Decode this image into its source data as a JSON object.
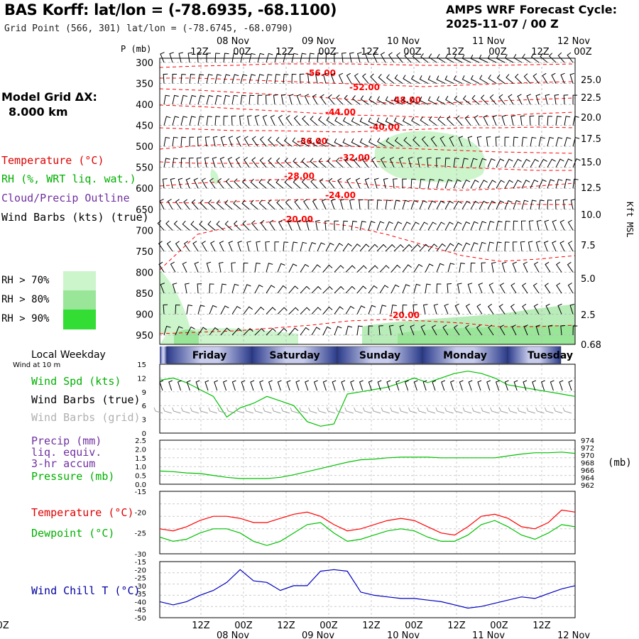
{
  "header": {
    "title": "BAS Korff:  lat/lon = (-78.6935, -68.1100)",
    "subtitle": "Grid Point (566, 301) lat/lon = (-78.6745, -68.0790)",
    "cycle_line1": "AMPS WRF Forecast Cycle:",
    "cycle_line2": "2025-11-07 / 00  Z"
  },
  "left_labels": {
    "model_grid": "Model Grid ΔX:",
    "model_grid_value": "8.000 km",
    "temperature": "Temperature (°C)",
    "rh": "RH (%, WRT liq. wat.)",
    "cloud": "Cloud/Precip Outline",
    "barbs": "Wind Barbs (kts) (true)",
    "rh70": "RH > 70%",
    "rh80": "RH > 80%",
    "rh90": "RH > 90%",
    "weekday": "Local Weekday",
    "wind10": "Wind at 10 m",
    "wind_spd": "Wind Spd (kts)",
    "wind_barbs_true": "Wind Barbs (true)",
    "wind_barbs_grid": "Wind Barbs (grid)",
    "precip1": "Precip (mm)",
    "precip2": "liq. equiv.",
    "precip3": "3-hr accum",
    "pressure": "Pressure (mb)",
    "temp2": "Temperature (°C)",
    "dewpoint": "Dewpoint (°C)",
    "windchill": "Wind Chill T (°C)",
    "p_unit": "P (mb)",
    "kft": "Kft MSL",
    "mb_unit": "(mb)"
  },
  "colors": {
    "temp": "#ff0000",
    "rh": "#00c000",
    "cloud": "#7030a0",
    "barb": "#000000",
    "grid_barb": "#a0a0a0",
    "windchill": "#0000c0",
    "rh70": "#ccf5cc",
    "rh80": "#99e699",
    "rh90": "#33dd33"
  },
  "chart_data": [
    {
      "type": "line",
      "title": "Cross-section: temperature contours and wind barbs",
      "x_top_ticks": [
        "12Z",
        "00Z",
        "12Z",
        "00Z",
        "12Z",
        "00Z",
        "12Z",
        "00Z",
        "12Z",
        "00Z"
      ],
      "x_top_dates": [
        "08 Nov",
        "09 Nov",
        "10 Nov",
        "11 Nov",
        "12 Nov"
      ],
      "pressure_levels": [
        300,
        350,
        400,
        450,
        500,
        550,
        600,
        650,
        700,
        750,
        800,
        850,
        900,
        950
      ],
      "height_kft": [
        "25.0",
        "22.5",
        "20.0",
        "17.5",
        "15.0",
        "12.5",
        "10.0",
        "7.5",
        "5.0",
        "2.5",
        "0.68"
      ],
      "temperature_contour_labels": [
        "-56.00",
        "-52.00",
        "-48.00",
        "-44.00",
        "-40.00",
        "-36.00",
        "-32.00",
        "-28.00",
        "-24.00",
        "-20.00",
        "-20.00"
      ]
    },
    {
      "type": "line",
      "title": "Local Weekday",
      "days": [
        "Friday",
        "Saturday",
        "Sunday",
        "Monday",
        "Tuesday"
      ]
    },
    {
      "type": "line",
      "title": "Wind Spd (kts)",
      "yticks": [
        "15",
        "12",
        "9",
        "6",
        "3",
        "0"
      ],
      "ylim": [
        0,
        15
      ],
      "values": [
        11.5,
        12,
        11,
        9.5,
        8,
        3.5,
        5.5,
        6.5,
        8,
        7,
        6,
        2.5,
        1.5,
        2,
        8.5,
        9,
        9.5,
        10,
        11,
        12,
        11,
        12,
        13,
        13.5,
        13,
        12,
        10.5,
        10,
        9.5,
        9,
        8.5,
        8
      ]
    },
    {
      "type": "line",
      "title": "Precip / Pressure",
      "yticks_left": [
        "2.5",
        "2.0",
        "1.5",
        "1.0",
        "0.5",
        "0.0"
      ],
      "yticks_right": [
        "974",
        "972",
        "970",
        "968",
        "966",
        "964",
        "962"
      ],
      "pressure_values": [
        966.2,
        966,
        965.6,
        965.4,
        964.8,
        964.2,
        963.8,
        963.8,
        963.8,
        964.2,
        965,
        966,
        967,
        968,
        969,
        969.8,
        970,
        970.4,
        970.6,
        970.6,
        970.6,
        970.4,
        970.4,
        970.4,
        970.4,
        970.4,
        971,
        971.6,
        972,
        972,
        972.2,
        971.8
      ]
    },
    {
      "type": "line",
      "title": "Temperature / Dewpoint",
      "yticks": [
        "-15",
        "-20",
        "-25",
        "-30"
      ],
      "ylim": [
        -30,
        -15
      ],
      "series": [
        {
          "name": "Temperature",
          "values": [
            -24,
            -24.5,
            -23.5,
            -22,
            -21,
            -21,
            -21.5,
            -22.5,
            -22.5,
            -21.5,
            -20.5,
            -20,
            -21,
            -23,
            -24.5,
            -24,
            -23,
            -22,
            -21.5,
            -22,
            -23.5,
            -25,
            -25.5,
            -23.5,
            -21,
            -20.5,
            -21.5,
            -23.5,
            -24,
            -22.5,
            -19.5,
            -20
          ]
        },
        {
          "name": "Dewpoint",
          "values": [
            -26,
            -27,
            -26.5,
            -25,
            -24,
            -24,
            -25,
            -27,
            -28,
            -27,
            -25,
            -23,
            -22.5,
            -25,
            -27,
            -26.5,
            -25.5,
            -24.5,
            -24,
            -24.5,
            -26,
            -27,
            -27,
            -25.5,
            -23,
            -22,
            -23.5,
            -25.5,
            -26.5,
            -25,
            -23,
            -23.5
          ]
        }
      ]
    },
    {
      "type": "line",
      "title": "Wind Chill T (°C)",
      "yticks": [
        "-15",
        "-20",
        "-25",
        "-30",
        "-35",
        "-40",
        "-45",
        "-50"
      ],
      "ylim": [
        -50,
        -15
      ],
      "values": [
        -40,
        -42,
        -40,
        -36,
        -33,
        -28,
        -20,
        -27,
        -28,
        -33,
        -30,
        -30,
        -21,
        -20,
        -21,
        -34,
        -36,
        -37,
        -38,
        -38,
        -39,
        -40,
        -42,
        -44,
        -43,
        -41,
        -39,
        -37,
        -38,
        -35,
        -32,
        -30
      ]
    },
    {
      "type": "line",
      "title": "Bottom time axis",
      "x_bottom_ticks": [
        "12Z",
        "00Z",
        "12Z",
        "00Z",
        "12Z",
        "00Z",
        "12Z",
        "00Z",
        "12Z",
        "00Z"
      ],
      "x_bottom_dates": [
        "08 Nov",
        "09 Nov",
        "10 Nov",
        "11 Nov",
        "12 Nov"
      ]
    }
  ]
}
